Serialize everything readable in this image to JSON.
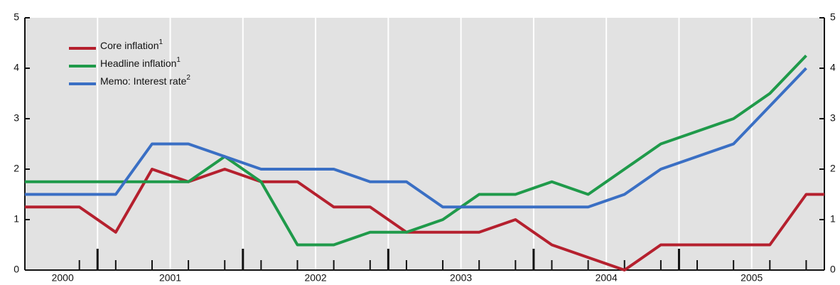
{
  "chart_data": {
    "type": "line",
    "x": [
      2000.5,
      2000.875,
      2001.125,
      2001.375,
      2001.625,
      2001.875,
      2002.125,
      2002.375,
      2002.625,
      2002.875,
      2003.125,
      2003.375,
      2003.625,
      2003.875,
      2004.125,
      2004.375,
      2004.625,
      2004.875,
      2005.125,
      2005.375,
      2005.625,
      2005.875,
      2006
    ],
    "series": [
      {
        "name": "Core inflation",
        "note": "1",
        "color": "#b5202e",
        "values": [
          1.25,
          1.25,
          0.75,
          2.0,
          1.75,
          2.0,
          1.75,
          1.75,
          1.25,
          1.25,
          0.75,
          0.75,
          0.75,
          1.0,
          0.5,
          0.25,
          0,
          0.5,
          0.5,
          0.5,
          0.5,
          1.5,
          1.5
        ]
      },
      {
        "name": "Headline inflation",
        "note": "1",
        "color": "#1f9a4a",
        "values": [
          1.75,
          1.75,
          1.75,
          1.75,
          1.75,
          2.25,
          1.75,
          0.5,
          0.5,
          0.75,
          0.75,
          1.0,
          1.5,
          1.5,
          1.75,
          1.5,
          2.0,
          2.5,
          2.75,
          3.0,
          3.5,
          4.25,
          null
        ]
      },
      {
        "name": "Memo: Interest rate",
        "note": "2",
        "color": "#3a6fc4",
        "values": [
          1.5,
          1.5,
          1.5,
          2.5,
          2.5,
          2.25,
          2.0,
          2.0,
          2.0,
          1.75,
          1.75,
          1.25,
          1.25,
          1.25,
          1.25,
          1.25,
          1.5,
          2.0,
          2.25,
          2.5,
          3.25,
          4.0,
          null
        ]
      }
    ],
    "xlim": [
      2000.5,
      2006
    ],
    "xticks": [
      {
        "value": 2000.76,
        "label": "2000"
      },
      {
        "value": 2001.5,
        "label": "2001"
      },
      {
        "value": 2002.5,
        "label": "2002"
      },
      {
        "value": 2003.5,
        "label": "2003"
      },
      {
        "value": 2004.5,
        "label": "2004"
      },
      {
        "value": 2005.5,
        "label": "2005"
      }
    ],
    "year_ticks": [
      2001,
      2002,
      2003,
      2004,
      2005
    ],
    "grid_x": [
      2001,
      2001.5,
      2002,
      2002.5,
      2003,
      2003.5,
      2004,
      2004.5,
      2005,
      2005.5
    ],
    "ylim": [
      0,
      5
    ],
    "yticks": [
      0,
      1,
      2,
      3,
      4,
      5
    ],
    "y2lim": [
      0,
      5
    ],
    "y2ticks": [
      0,
      1,
      2,
      3,
      4,
      5
    ],
    "legend": "upper left"
  }
}
